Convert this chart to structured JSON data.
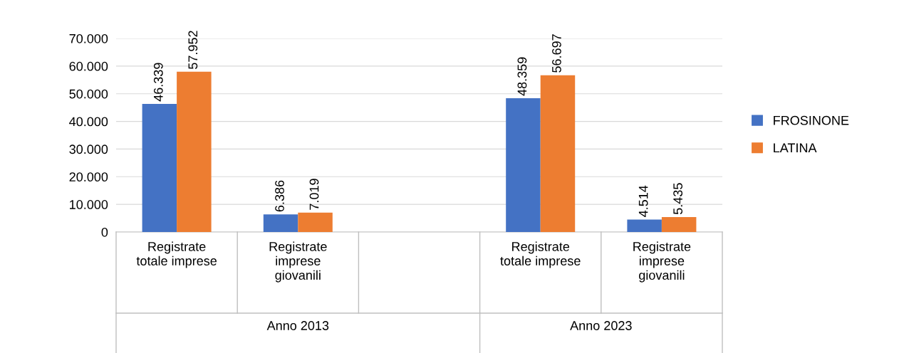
{
  "chart_data": {
    "type": "bar",
    "categories": [
      "Registrate\ntotale imprese",
      "Registrate\nimprese\ngiovanili",
      null,
      "Registrate\ntotale imprese",
      "Registrate\nimprese\ngiovanili"
    ],
    "series": [
      {
        "name": "FROSINONE",
        "color": "#4472c4",
        "values": [
          46339,
          6386,
          null,
          48359,
          4514
        ],
        "value_labels": [
          "46.339",
          "6.386",
          null,
          "48.359",
          "4.514"
        ]
      },
      {
        "name": "LATINA",
        "color": "#ed7d31",
        "values": [
          57952,
          7019,
          null,
          56697,
          5435
        ],
        "value_labels": [
          "57.952",
          "7.019",
          null,
          "56.697",
          "5.435"
        ]
      }
    ],
    "ylim": [
      0,
      70000
    ],
    "yticks": [
      {
        "value": 0,
        "label": "0"
      },
      {
        "value": 10000,
        "label": "10.000"
      },
      {
        "value": 20000,
        "label": "20.000"
      },
      {
        "value": 30000,
        "label": "30.000"
      },
      {
        "value": 40000,
        "label": "40.000"
      },
      {
        "value": 50000,
        "label": "50.000"
      },
      {
        "value": 60000,
        "label": "60.000"
      },
      {
        "value": 70000,
        "label": "70.000"
      }
    ],
    "grid": "y",
    "legend": "right",
    "annotations": [
      "Anno 2013",
      "Anno 2023"
    ]
  }
}
